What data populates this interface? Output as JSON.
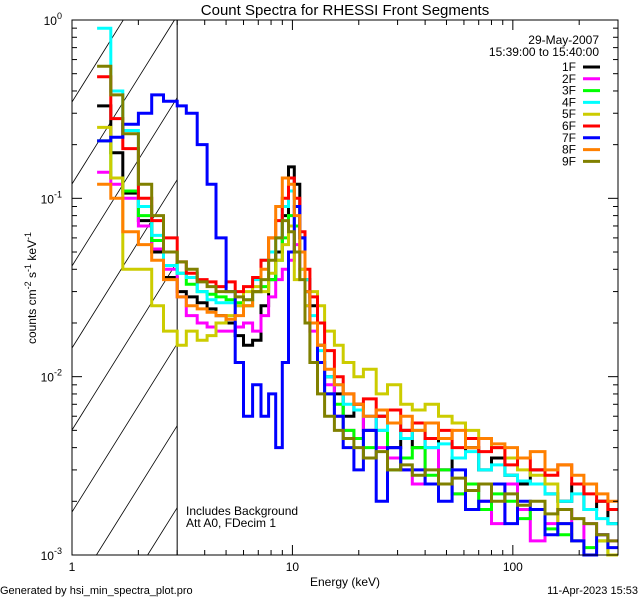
{
  "chart_data": {
    "type": "line",
    "title": "Count Spectra for RHESSI Front Segments",
    "xlabel": "Energy (keV)",
    "ylabel": "counts cm",
    "ylabel_parts": [
      "counts cm",
      "-2",
      " s",
      "-1",
      " keV",
      "-1"
    ],
    "xscale": "log",
    "yscale": "log",
    "xlim": [
      1,
      300
    ],
    "ylim": [
      0.001,
      1
    ],
    "x_tick_labels": [
      "1",
      "10",
      "100"
    ],
    "y_tick_labels": [
      {
        "base": "10",
        "exp": "0"
      },
      {
        "base": "10",
        "exp": "-1"
      },
      {
        "base": "10",
        "exp": "-2"
      },
      {
        "base": "10",
        "exp": "-3"
      }
    ],
    "date": "29-May-2007",
    "time_range": "15:39:00 to 15:40:00",
    "shaded_region_keV": [
      1,
      3
    ],
    "annotations": [
      "Includes Background",
      "Att A0, FDecim 1"
    ],
    "legend_position": "top-right",
    "energy_edges": [
      1.3,
      1.5,
      1.7,
      2.0,
      2.3,
      2.6,
      3.0,
      3.3,
      3.7,
      4.1,
      4.5,
      5.0,
      5.5,
      6.0,
      6.6,
      7.2,
      7.8,
      8.4,
      9.0,
      9.6,
      10.2,
      10.8,
      11.4,
      12,
      13,
      14,
      15.5,
      17,
      19,
      21,
      24,
      27,
      31,
      35,
      40,
      46,
      53,
      61,
      70,
      80,
      92,
      105,
      120,
      140,
      160,
      185,
      210,
      240,
      270,
      300
    ],
    "series": [
      {
        "name": "1F",
        "color": "#000000",
        "values": [
          0.33,
          0.18,
          0.107,
          0.075,
          0.05,
          0.036,
          0.03,
          0.028,
          0.026,
          0.024,
          0.022,
          0.02,
          0.017,
          0.015,
          0.016,
          0.025,
          0.035,
          0.05,
          0.08,
          0.15,
          0.12,
          0.06,
          0.035,
          0.025,
          0.015,
          0.01,
          0.008,
          0.006,
          0.007,
          0.005,
          0.006,
          0.004,
          0.005,
          0.004,
          0.0045,
          0.003,
          0.0035,
          0.004,
          0.003,
          0.0035,
          0.0028,
          0.0025,
          0.003,
          0.0022,
          0.002,
          0.0025,
          0.0018,
          0.002,
          0.0015
        ]
      },
      {
        "name": "2F",
        "color": "#ff00ff",
        "values": [
          0.14,
          0.12,
          0.1,
          0.07,
          0.052,
          0.04,
          0.028,
          0.022,
          0.02,
          0.019,
          0.018,
          0.018,
          0.019,
          0.02,
          0.018,
          0.022,
          0.028,
          0.035,
          0.04,
          0.045,
          0.055,
          0.04,
          0.025,
          0.018,
          0.012,
          0.009,
          0.006,
          0.005,
          0.0045,
          0.006,
          0.004,
          0.0035,
          0.003,
          0.0025,
          0.004,
          0.003,
          0.0022,
          0.0025,
          0.002,
          0.0015,
          0.0025,
          0.0018,
          0.0012,
          0.0015,
          0.0018,
          0.0012,
          0.0015,
          0.0013,
          0.0012
        ]
      },
      {
        "name": "3F",
        "color": "#00ff00",
        "values": [
          0.21,
          0.13,
          0.11,
          0.08,
          0.058,
          0.05,
          0.038,
          0.033,
          0.03,
          0.029,
          0.028,
          0.027,
          0.026,
          0.025,
          0.03,
          0.032,
          0.035,
          0.045,
          0.06,
          0.08,
          0.07,
          0.05,
          0.03,
          0.02,
          0.012,
          0.008,
          0.007,
          0.005,
          0.0045,
          0.004,
          0.005,
          0.003,
          0.0035,
          0.004,
          0.0028,
          0.003,
          0.0022,
          0.0025,
          0.0018,
          0.0022,
          0.002,
          0.0016,
          0.0018,
          0.0014,
          0.0013,
          0.0012,
          0.0011,
          0.0012,
          0.001
        ]
      },
      {
        "name": "4F",
        "color": "#00ffff",
        "values": [
          0.9,
          0.4,
          0.24,
          0.09,
          0.062,
          0.042,
          0.038,
          0.036,
          0.03,
          0.027,
          0.026,
          0.026,
          0.025,
          0.027,
          0.035,
          0.045,
          0.05,
          0.06,
          0.09,
          0.11,
          0.09,
          0.06,
          0.035,
          0.022,
          0.014,
          0.01,
          0.009,
          0.007,
          0.0065,
          0.006,
          0.005,
          0.0055,
          0.0045,
          0.005,
          0.004,
          0.0042,
          0.0035,
          0.0038,
          0.003,
          0.0032,
          0.0028,
          0.0026,
          0.0025,
          0.0022,
          0.002,
          0.0022,
          0.0018,
          0.0016,
          0.0015
        ]
      },
      {
        "name": "5F",
        "color": "#cccc00",
        "values": [
          0.25,
          0.13,
          0.04,
          0.04,
          0.025,
          0.018,
          0.015,
          0.018,
          0.016,
          0.017,
          0.02,
          0.022,
          0.025,
          0.03,
          0.032,
          0.03,
          0.038,
          0.045,
          0.055,
          0.07,
          0.035,
          0.04,
          0.025,
          0.03,
          0.025,
          0.018,
          0.015,
          0.012,
          0.01,
          0.011,
          0.008,
          0.009,
          0.007,
          0.0065,
          0.007,
          0.006,
          0.0055,
          0.005,
          0.0045,
          0.004,
          0.0035,
          0.003,
          0.0028,
          0.0025,
          0.0015,
          0.0012,
          0.001,
          0.0012,
          0.001
        ]
      },
      {
        "name": "6F",
        "color": "#ff0000",
        "values": [
          0.48,
          0.28,
          0.19,
          0.1,
          0.075,
          0.06,
          0.044,
          0.038,
          0.035,
          0.034,
          0.032,
          0.034,
          0.03,
          0.032,
          0.036,
          0.045,
          0.06,
          0.075,
          0.1,
          0.13,
          0.1,
          0.065,
          0.04,
          0.028,
          0.02,
          0.014,
          0.01,
          0.008,
          0.007,
          0.0075,
          0.006,
          0.0065,
          0.005,
          0.0055,
          0.0045,
          0.005,
          0.004,
          0.0045,
          0.0038,
          0.004,
          0.0032,
          0.0035,
          0.003,
          0.0028,
          0.0032,
          0.0025,
          0.0022,
          0.002,
          0.0018
        ]
      },
      {
        "name": "7F",
        "color": "#0000ff",
        "values": [
          0.21,
          0.22,
          0.26,
          0.3,
          0.38,
          0.35,
          0.33,
          0.3,
          0.2,
          0.12,
          0.06,
          0.03,
          0.012,
          0.006,
          0.009,
          0.006,
          0.008,
          0.004,
          0.012,
          0.05,
          0.09,
          0.06,
          0.03,
          0.02,
          0.012,
          0.008,
          0.006,
          0.004,
          0.003,
          0.005,
          0.002,
          0.004,
          0.003,
          0.003,
          0.0025,
          0.002,
          0.003,
          0.0018,
          0.002,
          0.0025,
          0.0015,
          0.002,
          0.0018,
          0.0013,
          0.0015,
          0.0012,
          0.001,
          0.0013,
          0.0011
        ]
      },
      {
        "name": "8F",
        "color": "#ff8000",
        "values": [
          0.12,
          0.1,
          0.065,
          0.055,
          0.045,
          0.035,
          0.028,
          0.025,
          0.024,
          0.023,
          0.022,
          0.021,
          0.022,
          0.025,
          0.03,
          0.04,
          0.06,
          0.09,
          0.13,
          0.12,
          0.08,
          0.05,
          0.03,
          0.02,
          0.015,
          0.011,
          0.009,
          0.008,
          0.007,
          0.006,
          0.0065,
          0.0055,
          0.006,
          0.005,
          0.0055,
          0.0045,
          0.005,
          0.004,
          0.0045,
          0.0042,
          0.004,
          0.0035,
          0.0038,
          0.003,
          0.0032,
          0.0028,
          0.0025,
          0.0022,
          0.002
        ]
      },
      {
        "name": "9F",
        "color": "#808000",
        "values": [
          0.55,
          0.38,
          0.23,
          0.12,
          0.08,
          0.05,
          0.044,
          0.04,
          0.034,
          0.032,
          0.03,
          0.03,
          0.028,
          0.027,
          0.03,
          0.035,
          0.045,
          0.06,
          0.075,
          0.065,
          0.05,
          0.035,
          0.02,
          0.012,
          0.008,
          0.006,
          0.005,
          0.0045,
          0.004,
          0.0035,
          0.0038,
          0.003,
          0.0032,
          0.0028,
          0.003,
          0.0025,
          0.0027,
          0.0023,
          0.0025,
          0.002,
          0.0022,
          0.0019,
          0.002,
          0.0017,
          0.0018,
          0.0016,
          0.0015,
          0.0013,
          0.0012
        ]
      }
    ]
  },
  "footer": {
    "generated_by": "Generated by hsi_min_spectra_plot.pro",
    "timestamp": "11-Apr-2023 15:53"
  }
}
